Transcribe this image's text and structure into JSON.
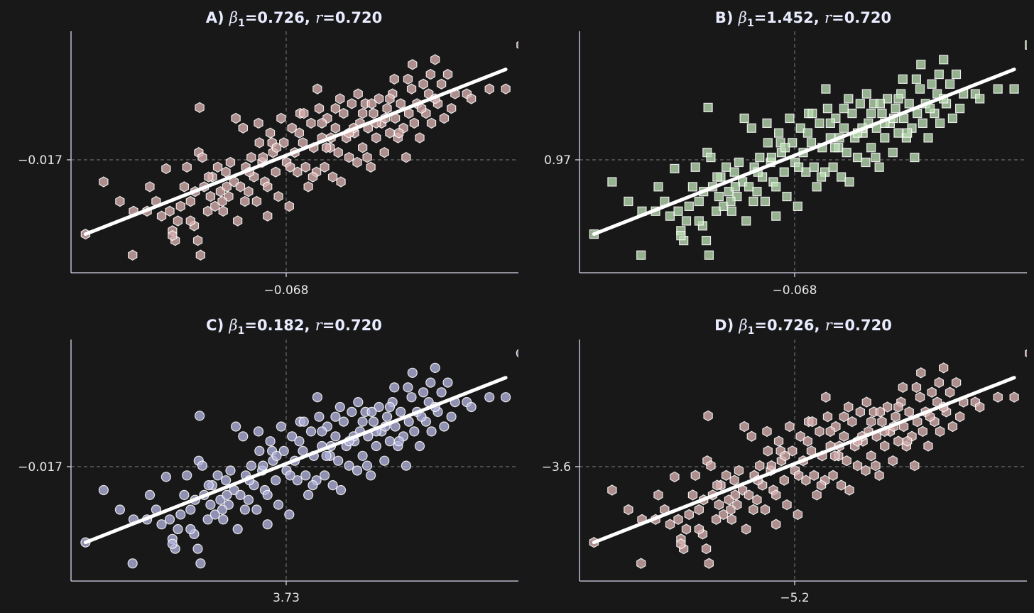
{
  "chart_data": [
    {
      "panel": "A",
      "type": "scatter",
      "title_prefix": "A)",
      "slope": "0.726",
      "r": "0.720",
      "x_tick": "−0.068",
      "y_tick": "−0.017",
      "x_center": -0.068,
      "y_center": -0.017,
      "marker": "hexagon",
      "color": "#d9aeae",
      "grid": "dashed reference lines at means",
      "fit_line": {
        "from": [
          -2.26,
          -1.63
        ],
        "to": [
          2.38,
          1.74
        ]
      }
    },
    {
      "panel": "B",
      "type": "scatter",
      "title_prefix": "B)",
      "slope": "1.452",
      "r": "0.720",
      "x_tick": "−0.068",
      "y_tick": "0.97",
      "x_center": -0.068,
      "y_center": 0.97,
      "marker": "square",
      "color": "#b9dcb1",
      "grid": "dashed reference lines at means",
      "fit_line": {
        "from": [
          -2.26,
          -1.63
        ],
        "to": [
          2.38,
          1.74
        ]
      }
    },
    {
      "panel": "C",
      "type": "scatter",
      "title_prefix": "C)",
      "slope": "0.182",
      "r": "0.720",
      "x_tick": "3.73",
      "y_tick": "−0.017",
      "x_center": 3.73,
      "y_center": -0.017,
      "marker": "circle",
      "color": "#b2b4de",
      "grid": "dashed reference lines at means",
      "fit_line": {
        "from": [
          -2.26,
          -1.63
        ],
        "to": [
          2.38,
          1.74
        ]
      }
    },
    {
      "panel": "D",
      "type": "scatter",
      "title_prefix": "D)",
      "slope": "0.726",
      "r": "0.720",
      "x_tick": "−5.2",
      "y_tick": "−3.6",
      "x_center": -5.2,
      "y_center": -3.6,
      "marker": "hexagon",
      "color": "#d9aeae",
      "grid": "dashed reference lines at means",
      "fit_line": {
        "from": [
          -2.26,
          -1.63
        ],
        "to": [
          2.38,
          1.74
        ]
      }
    }
  ],
  "points": [
    [
      -2.26,
      -1.63
    ],
    [
      -2.06,
      -0.56
    ],
    [
      -1.88,
      -0.96
    ],
    [
      -1.73,
      -1.16
    ],
    [
      -1.74,
      -2.06
    ],
    [
      -1.55,
      -0.66
    ],
    [
      -1.58,
      -1.16
    ],
    [
      -1.48,
      -0.96
    ],
    [
      -1.42,
      -1.26
    ],
    [
      -1.37,
      -0.29
    ],
    [
      -1.33,
      -1.16
    ],
    [
      -1.3,
      -1.56
    ],
    [
      -1.27,
      -1.76
    ],
    [
      -1.24,
      -1.36
    ],
    [
      -1.21,
      -1.06
    ],
    [
      -1.17,
      -0.66
    ],
    [
      -1.14,
      -0.26
    ],
    [
      -1.1,
      -0.96
    ],
    [
      -1.06,
      -1.46
    ],
    [
      -1.02,
      -1.76
    ],
    [
      -0.99,
      -2.06
    ],
    [
      -0.95,
      -0.66
    ],
    [
      -0.91,
      -1.16
    ],
    [
      -0.88,
      -0.86
    ],
    [
      -1.0,
      0.96
    ],
    [
      -1.01,
      0.04
    ],
    [
      -0.97,
      -0.06
    ],
    [
      -0.86,
      -0.46
    ],
    [
      -0.83,
      -1.06
    ],
    [
      -0.8,
      -0.26
    ],
    [
      -0.77,
      -0.76
    ],
    [
      -0.74,
      -1.16
    ],
    [
      -0.71,
      -0.36
    ],
    [
      -0.68,
      -0.86
    ],
    [
      -0.66,
      -0.16
    ],
    [
      -0.62,
      -0.56
    ],
    [
      -0.58,
      -1.36
    ],
    [
      -0.55,
      -0.66
    ],
    [
      -0.52,
      0.54
    ],
    [
      -0.49,
      -0.26
    ],
    [
      -0.46,
      -0.76
    ],
    [
      -0.43,
      -0.06
    ],
    [
      -0.4,
      -0.46
    ],
    [
      -0.37,
      -0.96
    ],
    [
      -0.34,
      0.24
    ],
    [
      -0.31,
      -0.16
    ],
    [
      -0.28,
      -0.56
    ],
    [
      -0.25,
      -1.26
    ],
    [
      -0.22,
      0.44
    ],
    [
      -0.19,
      0.04
    ],
    [
      -0.16,
      -0.36
    ],
    [
      -0.13,
      -0.86
    ],
    [
      -0.1,
      0.74
    ],
    [
      -0.07,
      0.24
    ],
    [
      -0.04,
      -0.16
    ],
    [
      -0.01,
      -1.06
    ],
    [
      0.02,
      0.54
    ],
    [
      0.05,
      0.04
    ],
    [
      0.08,
      -0.36
    ],
    [
      0.11,
      0.84
    ],
    [
      0.14,
      0.24
    ],
    [
      0.17,
      -0.26
    ],
    [
      0.2,
      -0.66
    ],
    [
      0.23,
      0.64
    ],
    [
      0.26,
      0.14
    ],
    [
      0.29,
      -0.36
    ],
    [
      0.32,
      0.94
    ],
    [
      0.35,
      0.34
    ],
    [
      0.38,
      -0.26
    ],
    [
      0.41,
      0.74
    ],
    [
      0.44,
      0.14
    ],
    [
      0.47,
      -0.46
    ],
    [
      0.5,
      0.54
    ],
    [
      0.53,
      0.04
    ],
    [
      0.56,
      -0.56
    ],
    [
      0.59,
      0.84
    ],
    [
      0.62,
      0.34
    ],
    [
      0.65,
      -0.06
    ],
    [
      0.68,
      1.04
    ],
    [
      0.71,
      0.44
    ],
    [
      0.74,
      -0.16
    ],
    [
      0.77,
      0.64
    ],
    [
      0.8,
      0.14
    ],
    [
      0.83,
      1.04
    ],
    [
      0.86,
      0.54
    ],
    [
      0.89,
      -0.26
    ],
    [
      0.92,
      0.84
    ],
    [
      0.95,
      0.34
    ],
    [
      0.98,
      1.14
    ],
    [
      1.01,
      0.64
    ],
    [
      1.04,
      0.04
    ],
    [
      1.07,
      0.94
    ],
    [
      1.1,
      0.44
    ],
    [
      1.13,
      1.24
    ],
    [
      1.16,
      0.74
    ],
    [
      1.19,
      0.34
    ],
    [
      1.22,
      1.04
    ],
    [
      1.25,
      0.54
    ],
    [
      1.28,
      -0.06
    ],
    [
      1.31,
      0.84
    ],
    [
      1.34,
      1.34
    ],
    [
      1.37,
      0.64
    ],
    [
      1.4,
      1.04
    ],
    [
      1.43,
      0.34
    ],
    [
      1.47,
      1.44
    ],
    [
      1.5,
      0.84
    ],
    [
      1.53,
      1.24
    ],
    [
      1.56,
      0.64
    ],
    [
      1.6,
      1.94
    ],
    [
      1.63,
      1.04
    ],
    [
      1.67,
      1.44
    ],
    [
      1.7,
      0.74
    ],
    [
      1.74,
      1.64
    ],
    [
      1.78,
      0.94
    ],
    [
      1.82,
      1.24
    ],
    [
      1.95,
      1.24
    ],
    [
      2.0,
      1.14
    ],
    [
      2.2,
      1.34
    ],
    [
      2.38,
      1.34
    ],
    [
      2.55,
      2.24
    ],
    [
      -0.6,
      0.74
    ],
    [
      -0.2,
      0.24
    ],
    [
      0.3,
      1.34
    ],
    [
      0.7,
      0.54
    ],
    [
      1.1,
      1.14
    ],
    [
      -1.3,
      -1.66
    ],
    [
      -0.9,
      -0.46
    ],
    [
      -0.3,
      -0.06
    ],
    [
      0.1,
      0.44
    ],
    [
      0.5,
      0.94
    ],
    [
      0.9,
      1.04
    ],
    [
      1.3,
      1.54
    ],
    [
      -0.5,
      -0.96
    ],
    [
      0.0,
      -0.26
    ],
    [
      0.4,
      0.14
    ],
    [
      0.8,
      0.84
    ],
    [
      1.2,
      0.44
    ],
    [
      1.6,
      1.14
    ],
    [
      -1.1,
      -1.36
    ],
    [
      -0.7,
      -0.66
    ],
    [
      -0.15,
      0.14
    ],
    [
      0.25,
      -0.46
    ],
    [
      0.65,
      0.44
    ],
    [
      1.05,
      0.74
    ],
    [
      1.45,
      0.94
    ],
    [
      -0.45,
      -0.36
    ],
    [
      0.15,
      0.84
    ],
    [
      0.55,
      1.14
    ],
    [
      0.95,
      0.64
    ],
    [
      1.35,
      1.84
    ],
    [
      -1.05,
      -0.76
    ],
    [
      -0.75,
      -0.96
    ],
    [
      -0.35,
      0.64
    ],
    [
      0.35,
      0.64
    ],
    [
      0.75,
      1.24
    ],
    [
      1.15,
      1.54
    ],
    [
      -0.25,
      -0.66
    ],
    [
      0.45,
      0.34
    ],
    [
      0.85,
      -0.06
    ],
    [
      1.55,
      1.64
    ]
  ]
}
